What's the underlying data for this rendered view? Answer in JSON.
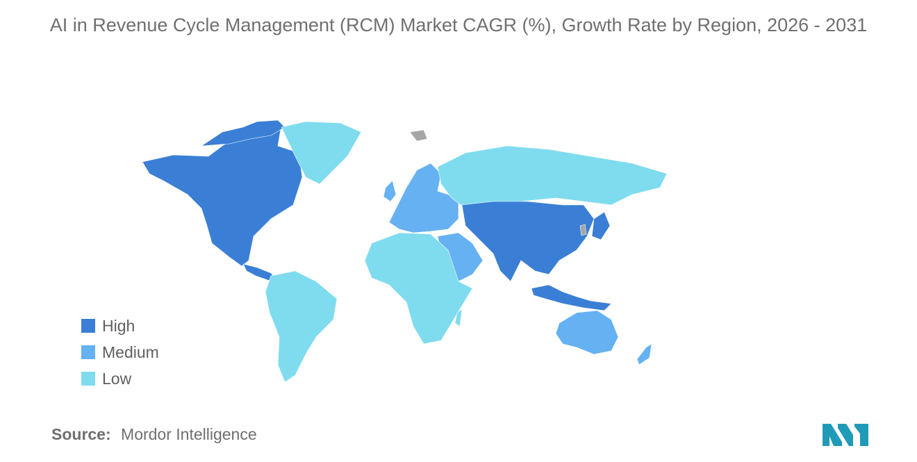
{
  "title": "AI in Revenue Cycle Management (RCM) Market CAGR (%), Growth Rate by Region, 2026 - 2031",
  "legend": [
    {
      "label": "High",
      "color": "#3a7fd5"
    },
    {
      "label": "Medium",
      "color": "#66b1f2"
    },
    {
      "label": "Low",
      "color": "#7fdcee"
    }
  ],
  "no_data_color": "#a6a6a6",
  "regions": {
    "north_america": "High",
    "asia_pacific_east_south": "High",
    "europe": "Medium",
    "middle_east": "Medium",
    "australia_new_zealand": "Medium",
    "south_america": "Low",
    "africa": "Low",
    "russia": "Low",
    "greenland": "Low"
  },
  "source": {
    "label": "Source:",
    "value": "Mordor Intelligence"
  },
  "logo": {
    "name": "mordor-intelligence-logo",
    "color": "#1f9bb8"
  }
}
